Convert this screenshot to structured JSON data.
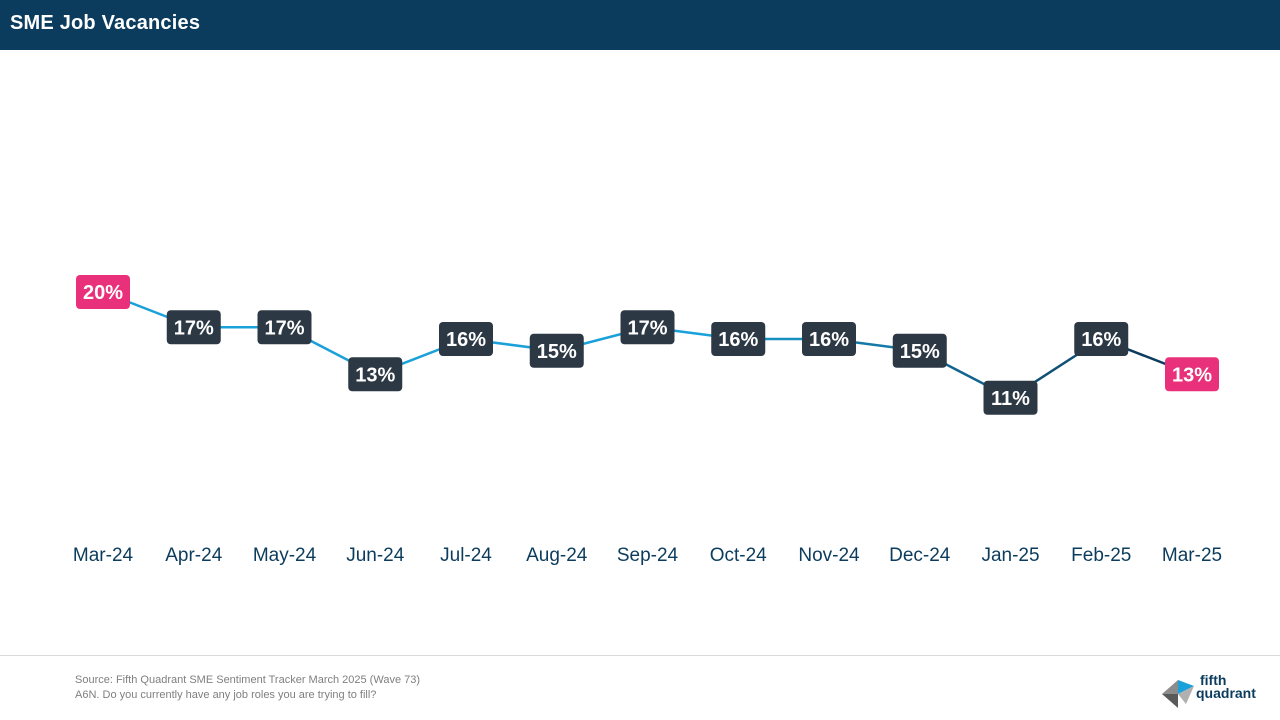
{
  "header": {
    "title": "SME Job Vacancies"
  },
  "chart_data": {
    "type": "line",
    "title": "SME Job Vacancies",
    "categories": [
      "Mar-24",
      "Apr-24",
      "May-24",
      "Jun-24",
      "Jul-24",
      "Aug-24",
      "Sep-24",
      "Oct-24",
      "Nov-24",
      "Dec-24",
      "Jan-25",
      "Feb-25",
      "Mar-25"
    ],
    "series": [
      {
        "values": [
          20,
          17,
          17,
          13,
          16,
          15,
          17,
          16,
          16,
          15,
          11,
          16,
          13
        ]
      }
    ],
    "labels": [
      "20%",
      "17%",
      "17%",
      "13%",
      "16%",
      "15%",
      "17%",
      "16%",
      "16%",
      "15%",
      "11%",
      "16%",
      "13%"
    ],
    "highlighted_points": [
      0,
      12
    ],
    "colors": {
      "line_early": "#1ba1d9",
      "line_late": "#0b3c5d",
      "label_default": "#2d3845",
      "label_highlight": "#e8317a",
      "axis_text": "#0b3c5d"
    },
    "grid": false,
    "legend": "none"
  },
  "footer": {
    "source": "Source: Fifth Quadrant SME Sentiment Tracker March 2025 (Wave 73)",
    "question": "A6N. Do you currently have any job roles you are trying to fill?",
    "logo_line1": "fifth",
    "logo_line2": "quadrant"
  }
}
